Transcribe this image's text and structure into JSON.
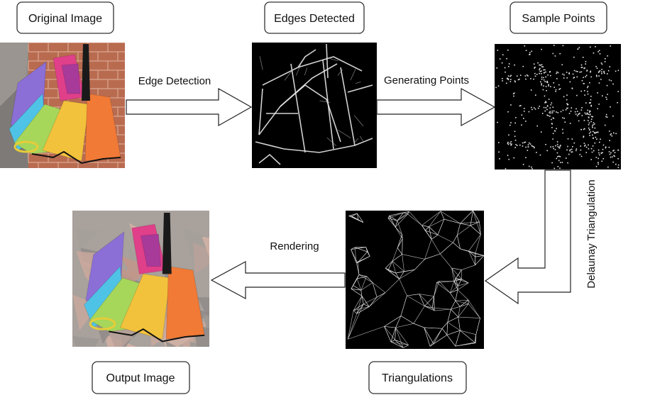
{
  "nodes": {
    "original": {
      "label": "Original Image"
    },
    "edges": {
      "label": "Edges Detected"
    },
    "samples": {
      "label": "Sample Points"
    },
    "triangulations": {
      "label": "Triangulations"
    },
    "output": {
      "label": "Output Image"
    }
  },
  "steps": {
    "edge_detection": "Edge Detection",
    "generating_points": "Generating Points",
    "delaunay": "Delaunay Triangulation",
    "rendering": "Rendering"
  },
  "palette": {
    "umbrella_purple": "#8b6fd6",
    "umbrella_blue": "#4fc3e6",
    "umbrella_green": "#a6d65a",
    "umbrella_yellow": "#f2c23c",
    "umbrella_orange": "#f07a36",
    "umbrella_pink": "#e03f8a",
    "brick": "#b96b50",
    "edge_white": "#e8e8e8",
    "background_black": "#000000"
  }
}
